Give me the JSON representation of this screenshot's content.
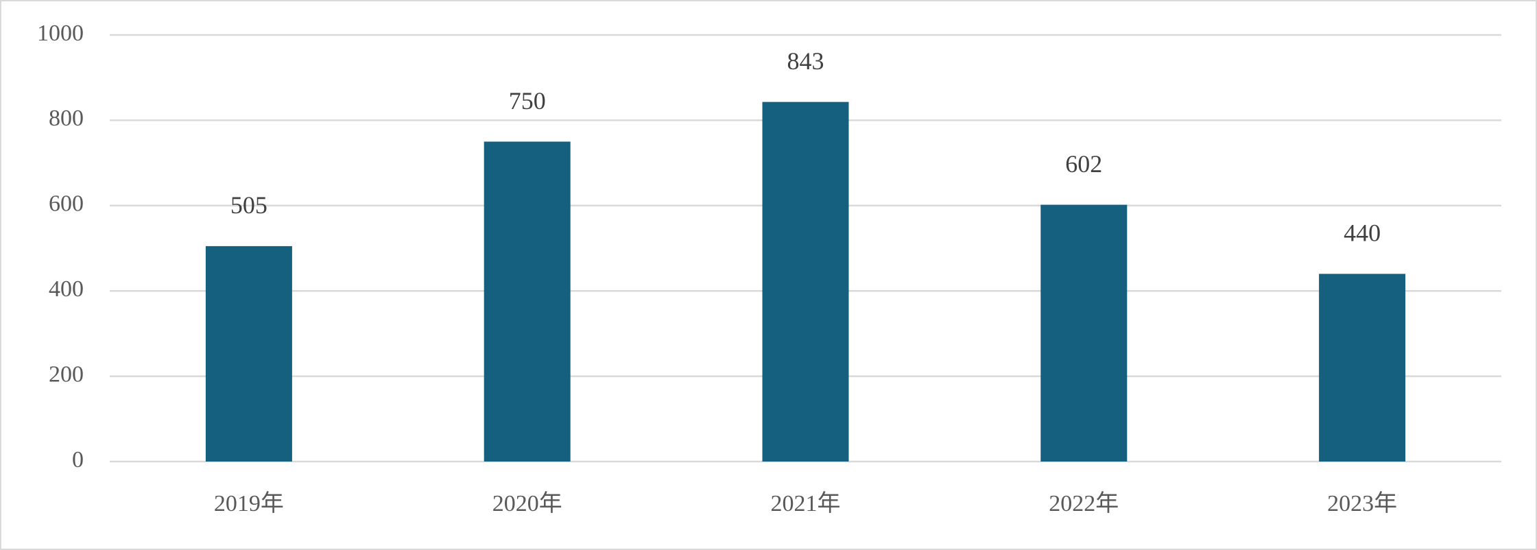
{
  "chart_data": {
    "type": "bar",
    "categories": [
      "2019年",
      "2020年",
      "2021年",
      "2022年",
      "2023年"
    ],
    "values": [
      505,
      750,
      843,
      602,
      440
    ],
    "color": "#16607f",
    "ylim": [
      0,
      1000
    ],
    "yticks": [
      0,
      200,
      400,
      600,
      800,
      1000
    ],
    "grid": true
  }
}
